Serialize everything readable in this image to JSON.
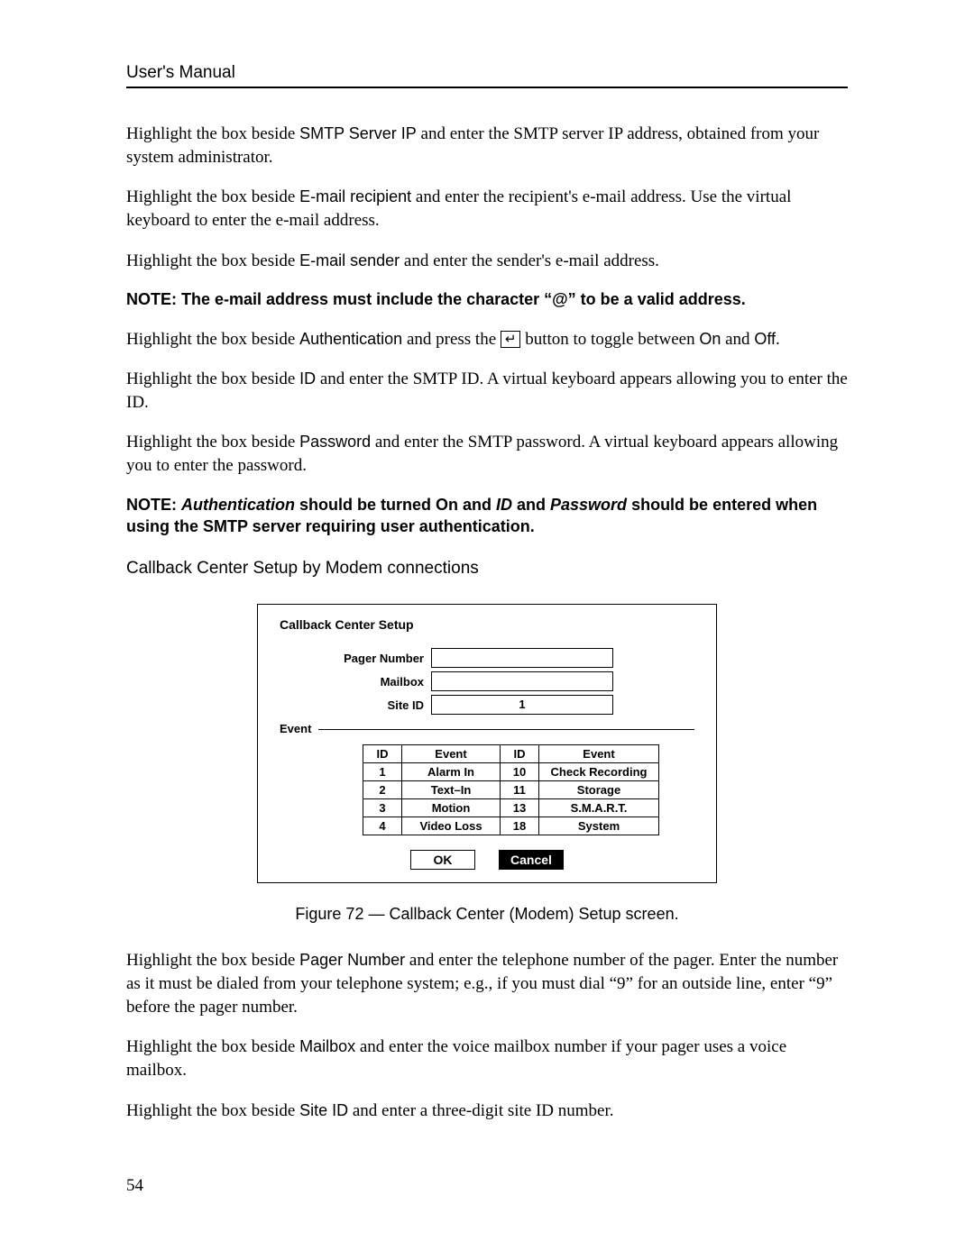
{
  "header": {
    "title": "User's Manual"
  },
  "para": {
    "smtp": {
      "pre": "Highlight the box beside ",
      "key": "SMTP Server IP",
      "post": " and enter the SMTP server IP address, obtained from your system administrator."
    },
    "recipient": {
      "pre": "Highlight the box beside ",
      "key": "E-mail recipient",
      "post": " and enter the recipient's e-mail address.  Use the virtual keyboard to enter the e-mail address."
    },
    "sender": {
      "pre": "Highlight the box beside ",
      "key": "E-mail sender",
      "post": " and enter the sender's e-mail address."
    },
    "auth": {
      "pre": "Highlight the box beside ",
      "key": "Authentication",
      "mid1": " and press the ",
      "icon": "↵",
      "mid2": " button to toggle between ",
      "on": "On",
      "and": " and ",
      "off": "Off",
      "end": "."
    },
    "id": {
      "pre": "Highlight the box beside ",
      "key": "ID",
      "post": " and enter the SMTP ID.  A virtual keyboard appears allowing you to enter the ID."
    },
    "pw": {
      "pre": "Highlight the box beside ",
      "key": "Password",
      "post": " and enter the SMTP password.  A virtual keyboard appears allowing you to enter the password."
    },
    "pager": {
      "pre": "Highlight the box beside ",
      "key": "Pager Number",
      "post": " and enter the telephone number of the pager.  Enter the number as it must be dialed from your telephone system; e.g., if you must dial “9” for an outside line, enter “9” before the pager number."
    },
    "mailbox": {
      "pre": "Highlight the box beside ",
      "key": "Mailbox",
      "post": " and enter the voice mailbox number if your pager uses a voice mailbox."
    },
    "siteid": {
      "pre": "Highlight the box beside ",
      "key": "Site ID",
      "post": " and enter a three-digit site ID number."
    }
  },
  "note1": "NOTE:  The e-mail address must include the character “@” to be a valid address.",
  "note2": {
    "lead": "NOTE:  ",
    "a": "Authentication",
    "b": " should be turned On and ",
    "c": "ID",
    "d": " and ",
    "e": "Password",
    "f": " should be entered when using the SMTP server requiring user authentication."
  },
  "subhead": "Callback Center Setup by Modem connections",
  "dialog": {
    "title": "Callback Center Setup",
    "labels": {
      "pager": "Pager Number",
      "mailbox": "Mailbox",
      "siteid": "Site ID"
    },
    "values": {
      "pager": "",
      "mailbox": "",
      "siteid": "1"
    },
    "event_legend": "Event",
    "table": {
      "head": {
        "id": "ID",
        "event": "Event"
      },
      "rows_left": [
        {
          "id": "1",
          "ev": "Alarm In"
        },
        {
          "id": "2",
          "ev": "Text–In"
        },
        {
          "id": "3",
          "ev": "Motion"
        },
        {
          "id": "4",
          "ev": "Video Loss"
        }
      ],
      "rows_right": [
        {
          "id": "10",
          "ev": "Check Recording"
        },
        {
          "id": "11",
          "ev": "Storage"
        },
        {
          "id": "13",
          "ev": "S.M.A.R.T."
        },
        {
          "id": "18",
          "ev": "System"
        }
      ]
    },
    "buttons": {
      "ok": "OK",
      "cancel": "Cancel"
    }
  },
  "figure_caption": "Figure 72 — Callback Center (Modem) Setup screen.",
  "page_number": "54"
}
